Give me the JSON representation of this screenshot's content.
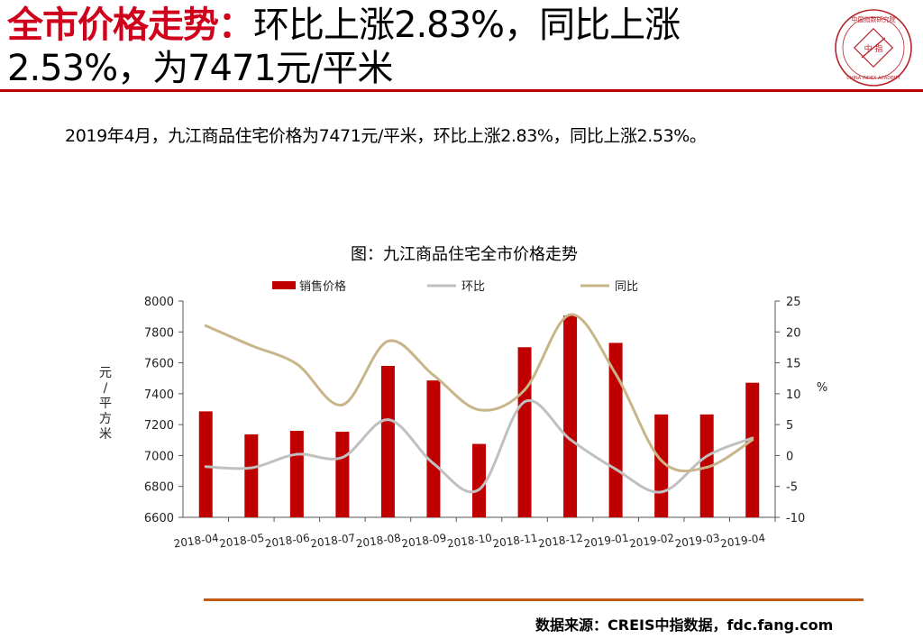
{
  "header": {
    "title_highlight": "全市价格走势：",
    "title_line1_rest": "环比上涨2.83%，同比上涨",
    "title_line2": "2.53%，为7471元/平米"
  },
  "logo": {
    "label": "中国指数研究院",
    "center_text": "中 指",
    "english": "CHINA INDEX ACADEMY"
  },
  "summary": "2019年4月，九江商品住宅价格为7471元/平米，环比上涨2.83%，同比上涨2.53%。",
  "source": "数据来源：CREIS中指数据，fdc.fang.com",
  "colors": {
    "accent": "#d0011b",
    "bar": "#c00000",
    "mom_line": "#c0c0c0",
    "yoy_line": "#c8b68a",
    "footer_rule": "#c05a16"
  },
  "chart_data": {
    "type": "bar",
    "title": "图：九江商品住宅全市价格走势",
    "categories": [
      "2018-04",
      "2018-05",
      "2018-06",
      "2018-07",
      "2018-08",
      "2018-09",
      "2018-10",
      "2018-11",
      "2018-12",
      "2019-01",
      "2019-02",
      "2019-03",
      "2019-04"
    ],
    "series": [
      {
        "name": "销售价格",
        "type": "bar",
        "axis": "left",
        "values": [
          7286,
          7137,
          7160,
          7154,
          7580,
          7486,
          7075,
          7701,
          7906,
          7729,
          7266,
          7266,
          7471
        ]
      },
      {
        "name": "环比",
        "type": "line",
        "axis": "right",
        "values": [
          -1.8,
          -2.0,
          0.2,
          -0.3,
          5.8,
          -1.3,
          -5.5,
          8.7,
          2.6,
          -2.2,
          -5.9,
          -0.1,
          2.83
        ]
      },
      {
        "name": "同比",
        "type": "line",
        "axis": "right",
        "values": [
          21.0,
          17.8,
          14.8,
          8.2,
          18.5,
          13.0,
          7.4,
          10.6,
          22.8,
          13.2,
          -0.8,
          -1.9,
          2.53
        ]
      }
    ],
    "ylabel_left": "元/平方米",
    "ylabel_right": "%",
    "ylim_left": [
      6600,
      8000
    ],
    "yticks_left": [
      6600,
      6800,
      7000,
      7200,
      7400,
      7600,
      7800,
      8000
    ],
    "ylim_right": [
      -10,
      25
    ],
    "yticks_right": [
      -10,
      -5,
      0,
      5,
      10,
      15,
      20,
      25
    ],
    "grid": false,
    "legend_position": "top"
  }
}
